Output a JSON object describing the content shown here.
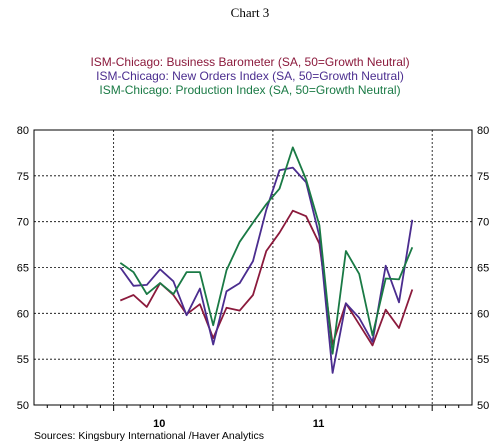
{
  "header": {
    "chart_number": "Chart 3"
  },
  "source": "Sources:  Kingsbury International /Haver Analytics",
  "chart_data": {
    "type": "line",
    "ylim": [
      50,
      80
    ],
    "y_ticks": [
      50,
      55,
      60,
      65,
      70,
      75,
      80
    ],
    "grid": true,
    "legend_placement": "top",
    "x": [
      "2009-07",
      "2009-08",
      "2009-09",
      "2009-10",
      "2009-11",
      "2009-12",
      "2010-01",
      "2010-02",
      "2010-03",
      "2010-04",
      "2010-05",
      "2010-06",
      "2010-07",
      "2010-08",
      "2010-09",
      "2010-10",
      "2010-11",
      "2010-12",
      "2011-01",
      "2011-02",
      "2011-03",
      "2011-04",
      "2011-05",
      "2011-06",
      "2011-07",
      "2011-08",
      "2011-09",
      "2011-10",
      "2011-11",
      "2011-12",
      "2012-01",
      "2012-02",
      "2012-03"
    ],
    "x_tick_labels": [
      {
        "label": "10",
        "at": "2010-01"
      },
      {
        "label": "11",
        "at": "2011-01"
      }
    ],
    "series": [
      {
        "name": "ISM-Chicago: Business Barometer (SA, 50=Growth Neutral)",
        "color": "#8b1a3c",
        "points": [
          [
            "2010-01",
            61.4
          ],
          [
            "2010-02",
            62.0
          ],
          [
            "2010-03",
            60.7
          ],
          [
            "2010-04",
            63.3
          ],
          [
            "2010-05",
            62.0
          ],
          [
            "2010-06",
            59.9
          ],
          [
            "2010-07",
            61.0
          ],
          [
            "2010-08",
            57.3
          ],
          [
            "2010-09",
            60.6
          ],
          [
            "2010-10",
            60.3
          ],
          [
            "2010-11",
            62.0
          ],
          [
            "2010-12",
            66.8
          ],
          [
            "2011-01",
            68.8
          ],
          [
            "2011-02",
            71.2
          ],
          [
            "2011-03",
            70.6
          ],
          [
            "2011-04",
            67.6
          ],
          [
            "2011-05",
            56.6
          ],
          [
            "2011-06",
            61.1
          ],
          [
            "2011-07",
            58.8
          ],
          [
            "2011-08",
            56.5
          ],
          [
            "2011-09",
            60.4
          ],
          [
            "2011-10",
            58.4
          ],
          [
            "2011-11",
            62.6
          ]
        ]
      },
      {
        "name": "ISM-Chicago: New Orders Index (SA, 50=Growth Neutral)",
        "color": "#4b2d8f",
        "points": [
          [
            "2010-01",
            65.0
          ],
          [
            "2010-02",
            63.0
          ],
          [
            "2010-03",
            63.1
          ],
          [
            "2010-04",
            64.8
          ],
          [
            "2010-05",
            63.5
          ],
          [
            "2010-06",
            59.8
          ],
          [
            "2010-07",
            62.7
          ],
          [
            "2010-08",
            56.6
          ],
          [
            "2010-09",
            62.4
          ],
          [
            "2010-10",
            63.3
          ],
          [
            "2010-11",
            65.7
          ],
          [
            "2010-12",
            71.3
          ],
          [
            "2011-01",
            75.6
          ],
          [
            "2011-02",
            75.9
          ],
          [
            "2011-03",
            74.3
          ],
          [
            "2011-04",
            68.4
          ],
          [
            "2011-05",
            53.5
          ],
          [
            "2011-06",
            61.1
          ],
          [
            "2011-07",
            59.5
          ],
          [
            "2011-08",
            56.9
          ],
          [
            "2011-09",
            65.2
          ],
          [
            "2011-10",
            61.2
          ],
          [
            "2011-11",
            70.2
          ]
        ]
      },
      {
        "name": "ISM-Chicago: Production Index (SA, 50=Growth Neutral)",
        "color": "#1a7a45",
        "points": [
          [
            "2010-01",
            65.5
          ],
          [
            "2010-02",
            64.5
          ],
          [
            "2010-03",
            62.1
          ],
          [
            "2010-04",
            63.3
          ],
          [
            "2010-05",
            62.1
          ],
          [
            "2010-06",
            64.5
          ],
          [
            "2010-07",
            64.5
          ],
          [
            "2010-08",
            58.7
          ],
          [
            "2010-09",
            64.7
          ],
          [
            "2010-10",
            67.8
          ],
          [
            "2010-11",
            69.9
          ],
          [
            "2010-12",
            71.9
          ],
          [
            "2011-01",
            73.6
          ],
          [
            "2011-02",
            78.1
          ],
          [
            "2011-03",
            74.6
          ],
          [
            "2011-04",
            69.6
          ],
          [
            "2011-05",
            55.6
          ],
          [
            "2011-06",
            66.8
          ],
          [
            "2011-07",
            64.3
          ],
          [
            "2011-08",
            57.6
          ],
          [
            "2011-09",
            63.8
          ],
          [
            "2011-10",
            63.7
          ],
          [
            "2011-11",
            67.2
          ]
        ]
      }
    ]
  }
}
